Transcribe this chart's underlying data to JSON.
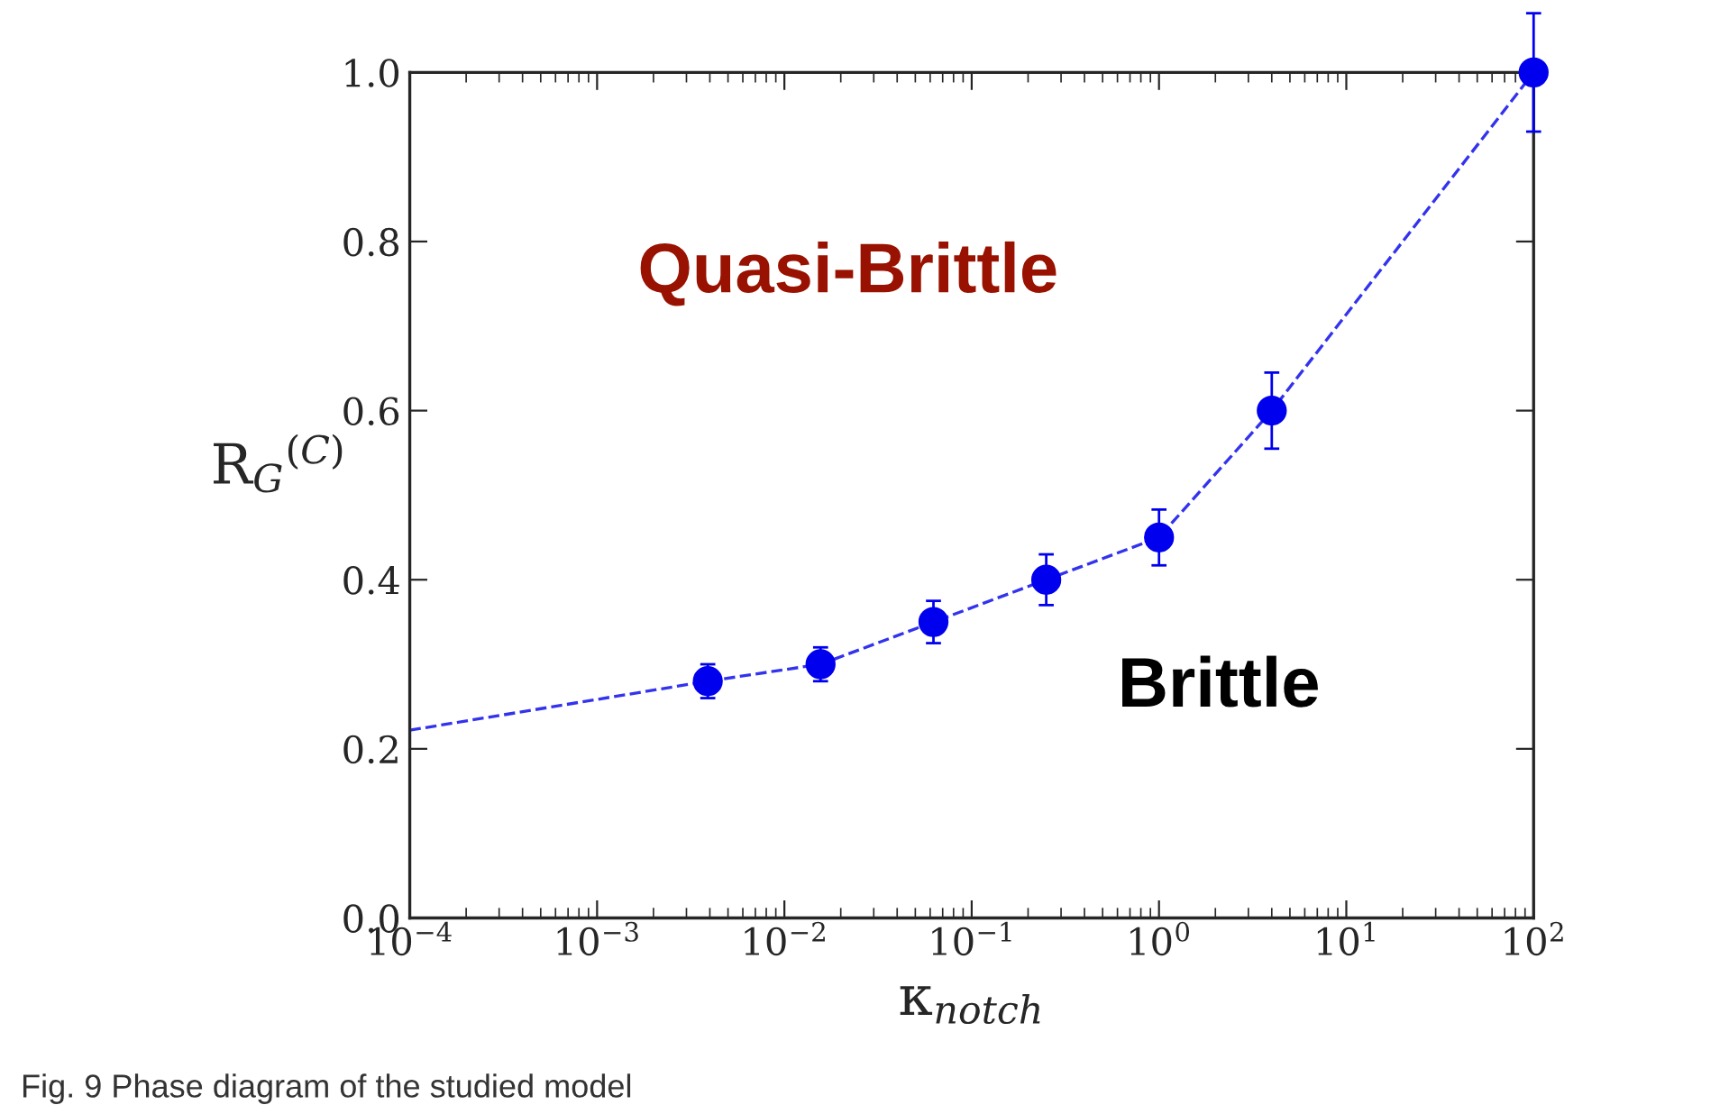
{
  "chart_data": {
    "type": "scatter",
    "xlabel": "κ$_{notch}$",
    "ylabel": "R$_{G}$$^{(C)}$",
    "x": [
      0.0039,
      0.0156,
      0.0625,
      0.25,
      1,
      4,
      100
    ],
    "series": [
      {
        "color": "#0000ee",
        "values": [
          0.28,
          0.3,
          0.35,
          0.4,
          0.45,
          0.6,
          1.0
        ],
        "errors": [
          0.02,
          0.02,
          0.025,
          0.03,
          0.033,
          0.045,
          0.07
        ],
        "marker": "circle"
      },
      {
        "type": "line",
        "color": "#3333ee",
        "x": [
          0.0001,
          0.0039,
          0.0156,
          0.0625,
          0.25,
          1,
          4,
          100
        ],
        "values": [
          0.222,
          0.28,
          0.3,
          0.35,
          0.4,
          0.45,
          0.6,
          1.0
        ],
        "line_style": "dashed",
        "marker": "none"
      }
    ],
    "log": "x",
    "xlim": [
      0.0001,
      100
    ],
    "xticks": [
      {
        "value": 0.0001,
        "label": "10$^{−4}$"
      },
      {
        "value": 0.001,
        "label": "10$^{−3}$"
      },
      {
        "value": 0.01,
        "label": "10$^{−2}$"
      },
      {
        "value": 0.1,
        "label": "10$^{−1}$"
      },
      {
        "value": 1,
        "label": "10$^{0}$"
      },
      {
        "value": 10,
        "label": "10$^{1}$"
      },
      {
        "value": 100,
        "label": "10$^{2}$"
      }
    ],
    "ylim": [
      0.0,
      1.0
    ],
    "yticks": [
      {
        "value": 0.0,
        "label": "0.0"
      },
      {
        "value": 0.2,
        "label": "0.2"
      },
      {
        "value": 0.4,
        "label": "0.4"
      },
      {
        "value": 0.6,
        "label": "0.6"
      },
      {
        "value": 0.8,
        "label": "0.8"
      },
      {
        "value": 1.0,
        "label": "1.0"
      }
    ],
    "grid": false,
    "legend": false,
    "annotations": [
      "Quasi-Brittle",
      "Brittle",
      "Fig. 9 Phase diagram of the studied model"
    ]
  }
}
